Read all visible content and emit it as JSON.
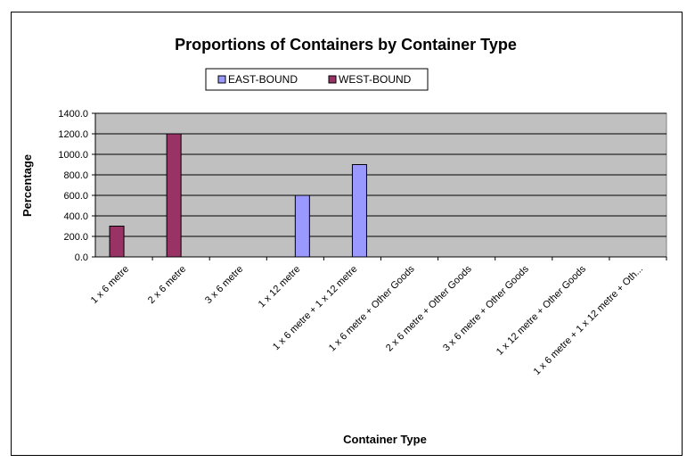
{
  "chart_data": {
    "type": "bar",
    "title": "Proportions of Containers by Container Type",
    "xlabel": "Container Type",
    "ylabel": "Percentage",
    "ylim": [
      0,
      1400
    ],
    "yticks": [
      "0.0",
      "200.0",
      "400.0",
      "600.0",
      "800.0",
      "1000.0",
      "1200.0",
      "1400.0"
    ],
    "categories": [
      "1 x 6 metre",
      "2 x 6 metre",
      "3 x 6 metre",
      "1 x 12 metre",
      "1 x 6 metre + 1 x 12 metre",
      "1 x 6 metre + Other Goods",
      "2 x 6 metre + Other Goods",
      "3 x 6 metre + Other Goods",
      "1 x 12 metre + Other Goods",
      "1 x 6 metre + 1 x 12 metre + Oth..."
    ],
    "series": [
      {
        "name": "EAST-BOUND",
        "color": "#9999ff",
        "values": [
          0,
          0,
          0,
          600,
          900,
          0,
          0,
          0,
          0,
          0
        ]
      },
      {
        "name": "WEST-BOUND",
        "color": "#993366",
        "values": [
          300,
          1200,
          0,
          0,
          0,
          0,
          0,
          0,
          0,
          0
        ]
      }
    ],
    "grid": true,
    "plot_background": "#c0c0c0",
    "legend_position": "top-center"
  }
}
